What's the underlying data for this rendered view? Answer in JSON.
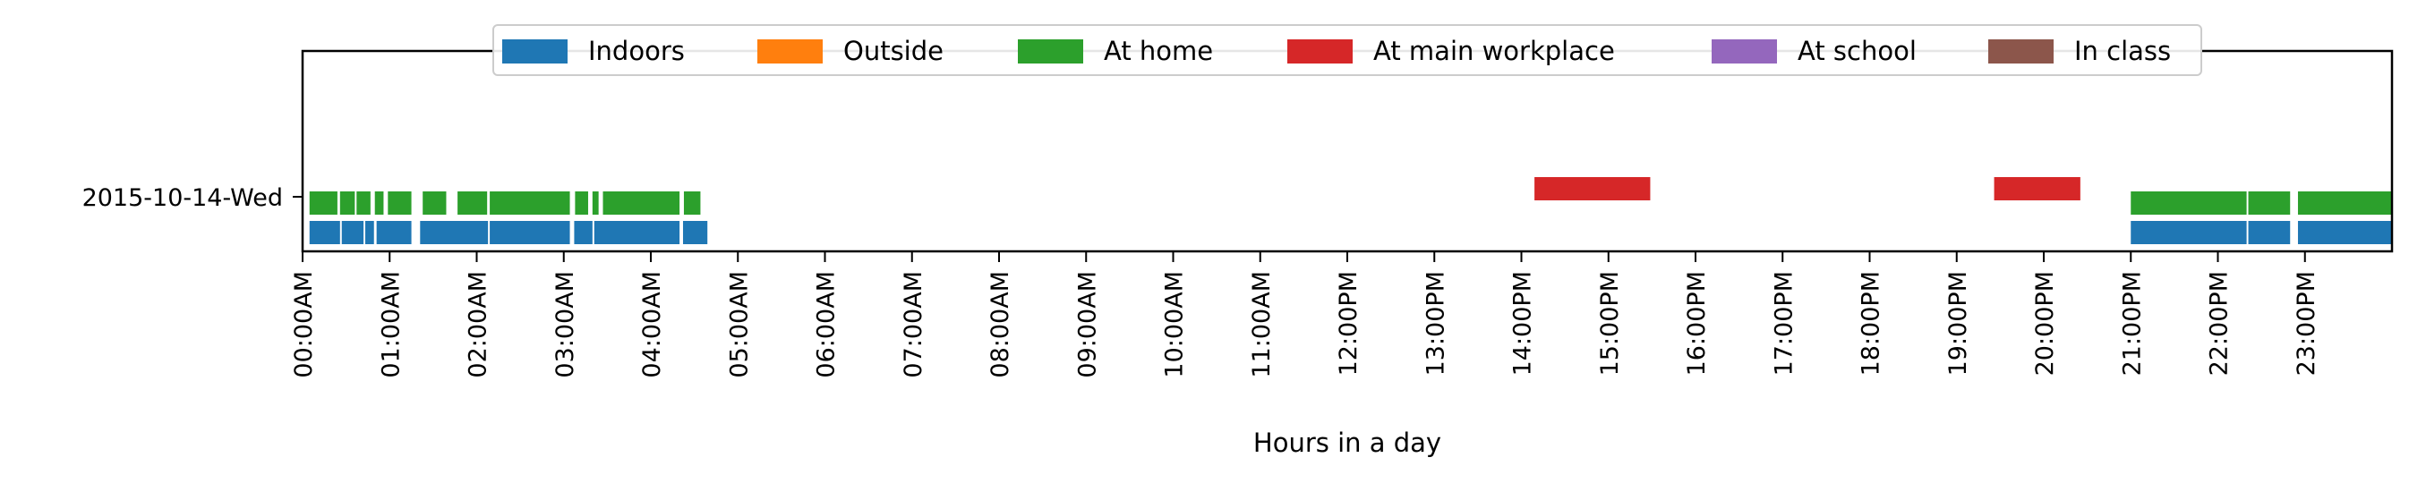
{
  "chart_data": {
    "type": "bar",
    "orientation": "horizontal",
    "xlabel": "Hours in a day",
    "ylabel": "",
    "xlim": [
      0,
      24
    ],
    "x_ticks": [
      "00:00AM",
      "01:00AM",
      "02:00AM",
      "03:00AM",
      "04:00AM",
      "05:00AM",
      "06:00AM",
      "07:00AM",
      "08:00AM",
      "09:00AM",
      "10:00AM",
      "11:00AM",
      "12:00PM",
      "13:00PM",
      "14:00PM",
      "15:00PM",
      "16:00PM",
      "17:00PM",
      "18:00PM",
      "19:00PM",
      "20:00PM",
      "21:00PM",
      "22:00PM",
      "23:00PM"
    ],
    "categories": [
      "2015-10-14-Wed"
    ],
    "legend_position": "top-center",
    "grid": false,
    "series": [
      {
        "name": "Indoors",
        "color": "#1f77b4",
        "intervals": [
          [
            0.08,
            0.43
          ],
          [
            0.45,
            0.7
          ],
          [
            0.72,
            0.82
          ],
          [
            0.85,
            1.25
          ],
          [
            1.35,
            2.13
          ],
          [
            2.15,
            3.07
          ],
          [
            3.12,
            3.33
          ],
          [
            3.35,
            4.33
          ],
          [
            4.37,
            4.65
          ],
          [
            21.0,
            22.33
          ],
          [
            22.35,
            22.83
          ],
          [
            22.92,
            24.0
          ]
        ]
      },
      {
        "name": "Outside",
        "color": "#ff7f0e",
        "intervals": []
      },
      {
        "name": "At home",
        "color": "#2ca02c",
        "intervals": [
          [
            0.08,
            0.4
          ],
          [
            0.43,
            0.6
          ],
          [
            0.62,
            0.78
          ],
          [
            0.83,
            0.93
          ],
          [
            0.98,
            1.25
          ],
          [
            1.38,
            1.65
          ],
          [
            1.78,
            2.12
          ],
          [
            2.15,
            3.07
          ],
          [
            3.13,
            3.28
          ],
          [
            3.33,
            3.4
          ],
          [
            3.45,
            4.33
          ],
          [
            4.38,
            4.57
          ],
          [
            21.0,
            22.33
          ],
          [
            22.35,
            22.83
          ],
          [
            22.92,
            24.0
          ]
        ]
      },
      {
        "name": "At main workplace",
        "color": "#d62728",
        "intervals": [
          [
            14.15,
            15.48
          ],
          [
            19.43,
            20.42
          ]
        ]
      },
      {
        "name": "At school",
        "color": "#9467bd",
        "intervals": []
      },
      {
        "name": "In class",
        "color": "#8c564b",
        "intervals": []
      }
    ]
  }
}
